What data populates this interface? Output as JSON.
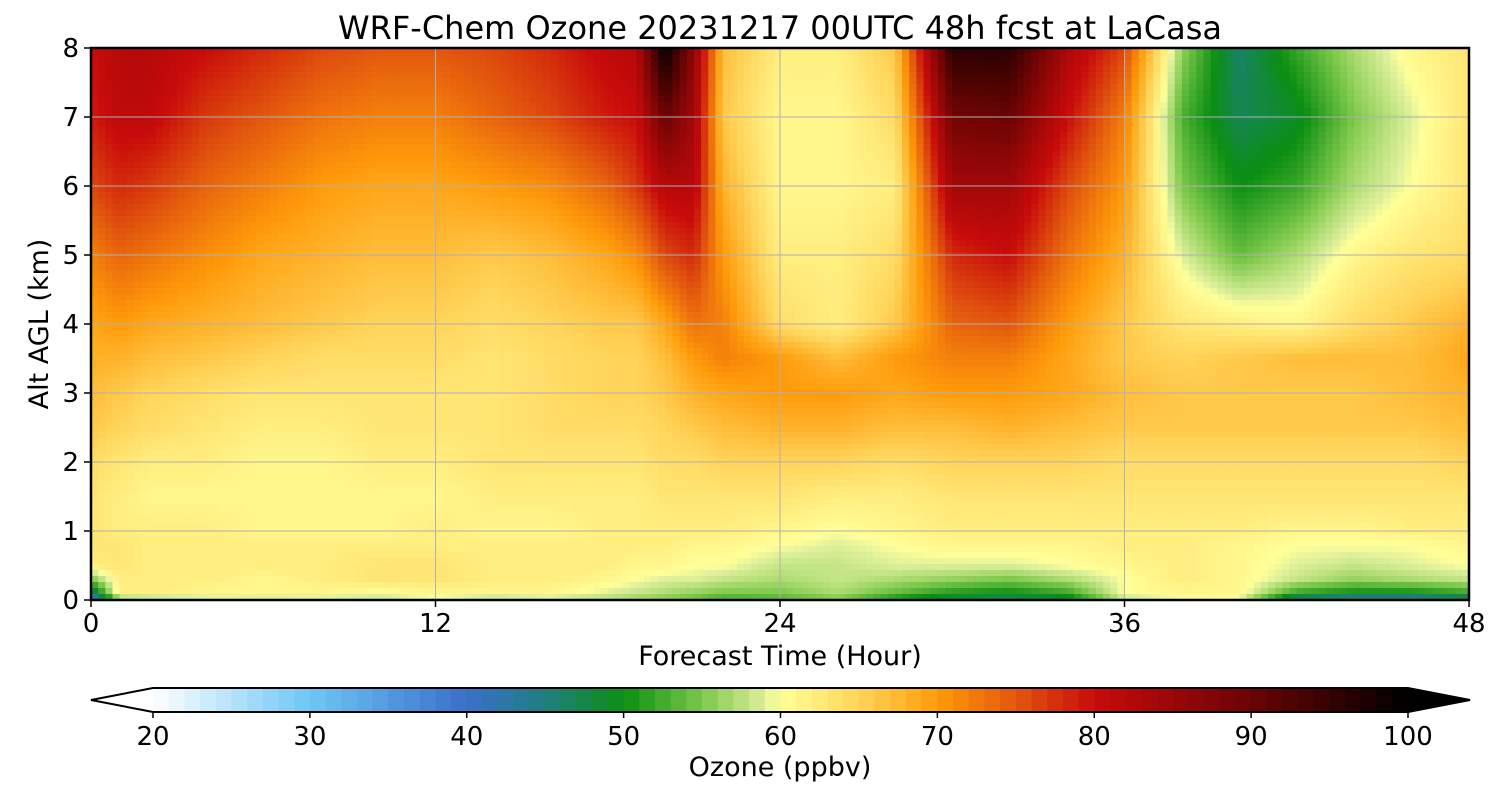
{
  "chart_data": {
    "type": "heatmap",
    "title": "WRF-Chem Ozone  20231217 00UTC 48h fcst at LaCasa",
    "xlabel": "Forecast Time (Hour)",
    "ylabel": "Alt AGL (km)",
    "xlim": [
      0,
      48
    ],
    "ylim": [
      0,
      8
    ],
    "x_ticks": [
      0,
      12,
      24,
      36,
      48
    ],
    "y_ticks": [
      0,
      1,
      2,
      3,
      4,
      5,
      6,
      7,
      8
    ],
    "grid": true,
    "colorbar": {
      "label": "Ozone  (ppbv)",
      "min": 20,
      "max": 100,
      "ticks": [
        20,
        30,
        40,
        50,
        60,
        70,
        80,
        90,
        100
      ],
      "extend": "both",
      "placement": "bottom",
      "anchors": [
        {
          "value": 20,
          "color": "#ffffff"
        },
        {
          "value": 30,
          "color": "#6ec6f5"
        },
        {
          "value": 40,
          "color": "#3a6fc9"
        },
        {
          "value": 45,
          "color": "#1f7f80"
        },
        {
          "value": 50,
          "color": "#0b8e12"
        },
        {
          "value": 55,
          "color": "#7cc84a"
        },
        {
          "value": 59,
          "color": "#ddef9a"
        },
        {
          "value": 60,
          "color": "#ffff99"
        },
        {
          "value": 65,
          "color": "#ffd45a"
        },
        {
          "value": 70,
          "color": "#ff9b0a"
        },
        {
          "value": 75,
          "color": "#e2570e"
        },
        {
          "value": 80,
          "color": "#c80b0b"
        },
        {
          "value": 90,
          "color": "#6a0404"
        },
        {
          "value": 100,
          "color": "#000000"
        }
      ],
      "under_color": "#ffffff",
      "over_color": "#000000"
    },
    "altitudes_km": [
      0,
      0.1,
      0.3,
      0.5,
      0.8,
      1,
      1.5,
      2,
      2.5,
      3,
      3.5,
      4,
      5,
      6,
      7,
      8
    ],
    "hours": [
      0,
      1,
      2,
      4,
      6,
      8,
      10,
      12,
      14,
      16,
      18,
      19,
      20,
      21,
      22,
      24,
      26,
      28,
      30,
      32,
      34,
      36,
      38,
      40,
      42,
      44,
      46,
      48
    ],
    "ozone_ppbv": [
      [
        38,
        55,
        56,
        58,
        58,
        58,
        58,
        59,
        57,
        58,
        57,
        56,
        55,
        54,
        52,
        53,
        55,
        50,
        47,
        46,
        48,
        58,
        59,
        59,
        44,
        42,
        42,
        44
      ],
      [
        45,
        62,
        62,
        61,
        61,
        61,
        60,
        61,
        61,
        61,
        59,
        58,
        57,
        56,
        55,
        55,
        57,
        54,
        51,
        50,
        52,
        60,
        61,
        61,
        52,
        50,
        50,
        52
      ],
      [
        55,
        62,
        62,
        62,
        61,
        62,
        63,
        63,
        62,
        62,
        61,
        60,
        59,
        59,
        58,
        57,
        58,
        57,
        56,
        55,
        57,
        60,
        62,
        61,
        58,
        56,
        57,
        58
      ],
      [
        62,
        63,
        62,
        62,
        62,
        62,
        63,
        63,
        62,
        62,
        62,
        61,
        61,
        60,
        60,
        58,
        58,
        59,
        59,
        59,
        60,
        61,
        62,
        61,
        59,
        58,
        59,
        60
      ],
      [
        63,
        63,
        62,
        62,
        62,
        62,
        62,
        62,
        62,
        62,
        62,
        62,
        62,
        61,
        61,
        60,
        59,
        60,
        61,
        61,
        61,
        62,
        62,
        61,
        60,
        60,
        60,
        61
      ],
      [
        63,
        62,
        62,
        62,
        61,
        61,
        61,
        62,
        61,
        61,
        62,
        62,
        62,
        62,
        62,
        61,
        60,
        61,
        62,
        62,
        62,
        62,
        62,
        62,
        61,
        61,
        62,
        62
      ],
      [
        63,
        62,
        61,
        61,
        61,
        61,
        61,
        61,
        62,
        62,
        62,
        62,
        63,
        63,
        63,
        63,
        62,
        62,
        63,
        63,
        63,
        63,
        63,
        63,
        63,
        63,
        63,
        63
      ],
      [
        64,
        63,
        62,
        62,
        61,
        61,
        62,
        62,
        63,
        63,
        63,
        63,
        64,
        64,
        65,
        65,
        65,
        64,
        65,
        65,
        65,
        64,
        64,
        64,
        64,
        64,
        64,
        65
      ],
      [
        66,
        65,
        64,
        63,
        62,
        62,
        63,
        63,
        63,
        64,
        64,
        64,
        65,
        66,
        67,
        68,
        68,
        67,
        67,
        68,
        67,
        66,
        66,
        66,
        66,
        66,
        66,
        67
      ],
      [
        67,
        66,
        65,
        64,
        63,
        63,
        63,
        63,
        63,
        64,
        65,
        65,
        66,
        68,
        69,
        70,
        70,
        69,
        70,
        70,
        69,
        67,
        66,
        66,
        66,
        66,
        67,
        68
      ],
      [
        68,
        68,
        67,
        66,
        65,
        64,
        64,
        64,
        63,
        64,
        65,
        65,
        67,
        70,
        72,
        70,
        67,
        70,
        72,
        72,
        69,
        66,
        65,
        66,
        67,
        67,
        67,
        69
      ],
      [
        69,
        70,
        69,
        68,
        67,
        66,
        65,
        65,
        64,
        65,
        66,
        66,
        69,
        73,
        72,
        64,
        62,
        66,
        74,
        75,
        70,
        66,
        63,
        62,
        61,
        64,
        66,
        68
      ],
      [
        72,
        74,
        73,
        71,
        69,
        68,
        67,
        67,
        66,
        67,
        69,
        71,
        76,
        78,
        70,
        62,
        62,
        64,
        78,
        80,
        73,
        68,
        59,
        54,
        57,
        61,
        63,
        64
      ],
      [
        76,
        78,
        77,
        74,
        72,
        70,
        69,
        69,
        70,
        71,
        74,
        77,
        82,
        82,
        68,
        61,
        61,
        62,
        84,
        84,
        76,
        70,
        55,
        50,
        52,
        57,
        60,
        63
      ],
      [
        79,
        81,
        81,
        77,
        75,
        73,
        72,
        72,
        74,
        76,
        79,
        80,
        90,
        84,
        66,
        61,
        61,
        64,
        89,
        90,
        80,
        72,
        53,
        47,
        49,
        55,
        59,
        63
      ],
      [
        80,
        82,
        82,
        80,
        78,
        76,
        75,
        75,
        76,
        78,
        81,
        82,
        100,
        86,
        67,
        62,
        62,
        66,
        96,
        96,
        83,
        76,
        56,
        46,
        52,
        57,
        61,
        63
      ]
    ]
  }
}
